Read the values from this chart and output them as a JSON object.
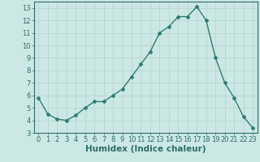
{
  "x": [
    0,
    1,
    2,
    3,
    4,
    5,
    6,
    7,
    8,
    9,
    10,
    11,
    12,
    13,
    14,
    15,
    16,
    17,
    18,
    19,
    20,
    21,
    22,
    23
  ],
  "y": [
    5.8,
    4.5,
    4.1,
    4.0,
    4.4,
    5.0,
    5.5,
    5.5,
    6.0,
    6.5,
    7.5,
    8.5,
    9.5,
    11.0,
    11.5,
    12.3,
    12.3,
    13.1,
    12.0,
    9.0,
    7.0,
    5.8,
    4.3,
    3.4
  ],
  "line_color": "#2e7d6e",
  "marker": "P",
  "marker_size": 2.5,
  "bg_color": "#cce8e4",
  "grid_color": "#b8d4d0",
  "xlabel": "Humidex (Indice chaleur)",
  "ylim": [
    3,
    13.5
  ],
  "xlim": [
    -0.5,
    23.5
  ],
  "yticks": [
    3,
    4,
    5,
    6,
    7,
    8,
    9,
    10,
    11,
    12,
    13
  ],
  "xticks": [
    0,
    1,
    2,
    3,
    4,
    5,
    6,
    7,
    8,
    9,
    10,
    11,
    12,
    13,
    14,
    15,
    16,
    17,
    18,
    19,
    20,
    21,
    22,
    23
  ],
  "tick_label_fontsize": 6,
  "xlabel_fontsize": 7.5
}
